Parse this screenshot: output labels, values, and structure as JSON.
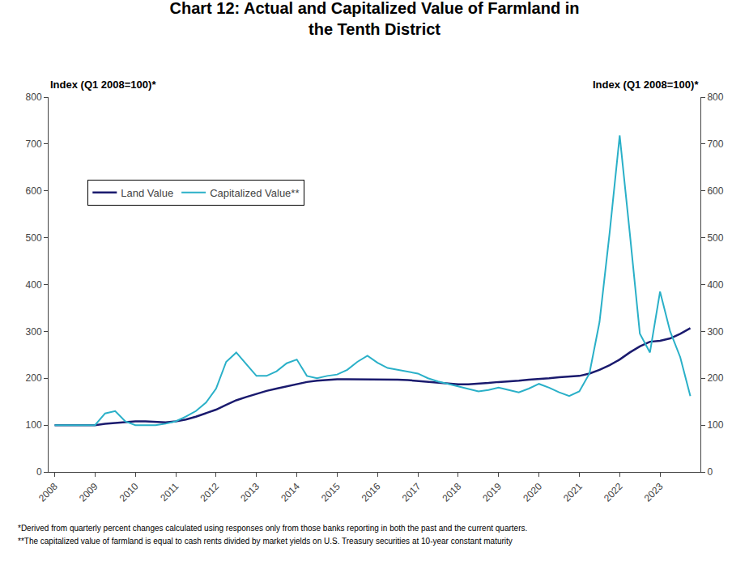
{
  "chart_data": {
    "type": "line",
    "title": "Chart 12: Actual and Capitalized Value of Farmland in\nthe Tenth District",
    "ylabel": "Index (Q1 2008=100)*",
    "y2label": "Index (Q1 2008=100)*",
    "annotations": [
      "*Derived from quarterly percent changes calculated using responses only from those banks reporting in both the past and the current quarters.",
      "**The capitalized value of farmland is equal to cash rents divided by market yields on U.S. Treasury securities at 10-year constant maturity"
    ],
    "x": [
      2008,
      2008.25,
      2008.5,
      2008.75,
      2009,
      2009.25,
      2009.5,
      2009.75,
      2010,
      2010.25,
      2010.5,
      2010.75,
      2011,
      2011.25,
      2011.5,
      2011.75,
      2012,
      2012.25,
      2012.5,
      2012.75,
      2013,
      2013.25,
      2013.5,
      2013.75,
      2014,
      2014.25,
      2014.5,
      2014.75,
      2015,
      2015.25,
      2015.5,
      2015.75,
      2016,
      2016.25,
      2016.5,
      2016.75,
      2017,
      2017.25,
      2017.5,
      2017.75,
      2018,
      2018.25,
      2018.5,
      2018.75,
      2019,
      2019.25,
      2019.5,
      2019.75,
      2020,
      2020.25,
      2020.5,
      2020.75,
      2021,
      2021.25,
      2021.5,
      2021.75,
      2022,
      2022.25,
      2022.5,
      2022.75,
      2023,
      2023.25,
      2023.5,
      2023.75
    ],
    "series": [
      {
        "name": "Land Value",
        "color": "#1a1a6e",
        "values": [
          100,
          100,
          100,
          100,
          100,
          103,
          105,
          107,
          108,
          108,
          107,
          106,
          108,
          112,
          118,
          125,
          133,
          143,
          153,
          160,
          167,
          173,
          178,
          183,
          188,
          192,
          195,
          197,
          198,
          198,
          198,
          198,
          198,
          198,
          197,
          196,
          194,
          192,
          190,
          188,
          187,
          187,
          188,
          190,
          192,
          193,
          195,
          197,
          198,
          200,
          202,
          203,
          205,
          210,
          218,
          228,
          240,
          255,
          268,
          278,
          280,
          285,
          295,
          307
        ]
      },
      {
        "name": "Capitalized Value**",
        "color": "#2ab0c8",
        "values": [
          100,
          100,
          100,
          100,
          100,
          125,
          130,
          108,
          100,
          100,
          100,
          103,
          108,
          118,
          130,
          148,
          178,
          235,
          255,
          230,
          205,
          205,
          215,
          232,
          240,
          205,
          200,
          205,
          208,
          218,
          235,
          248,
          233,
          222,
          218,
          215,
          210,
          200,
          193,
          188,
          183,
          178,
          172,
          175,
          180,
          175,
          170,
          178,
          188,
          180,
          170,
          162,
          172,
          210,
          320,
          510,
          718,
          510,
          295,
          255,
          385,
          300,
          245,
          162
        ]
      }
    ],
    "xlim": [
      2007.85,
      2024.0
    ],
    "xticks": [
      2008,
      2009,
      2010,
      2011,
      2012,
      2013,
      2014,
      2015,
      2016,
      2017,
      2018,
      2019,
      2020,
      2021,
      2022,
      2023
    ],
    "ylim": [
      0,
      800
    ],
    "yticks": [
      0,
      100,
      200,
      300,
      400,
      500,
      600,
      700,
      800
    ],
    "y2lim": [
      0,
      800
    ],
    "y2ticks": [
      0,
      100,
      200,
      300,
      400,
      500,
      600,
      700,
      800
    ],
    "grid": false,
    "legend": "upper left"
  }
}
